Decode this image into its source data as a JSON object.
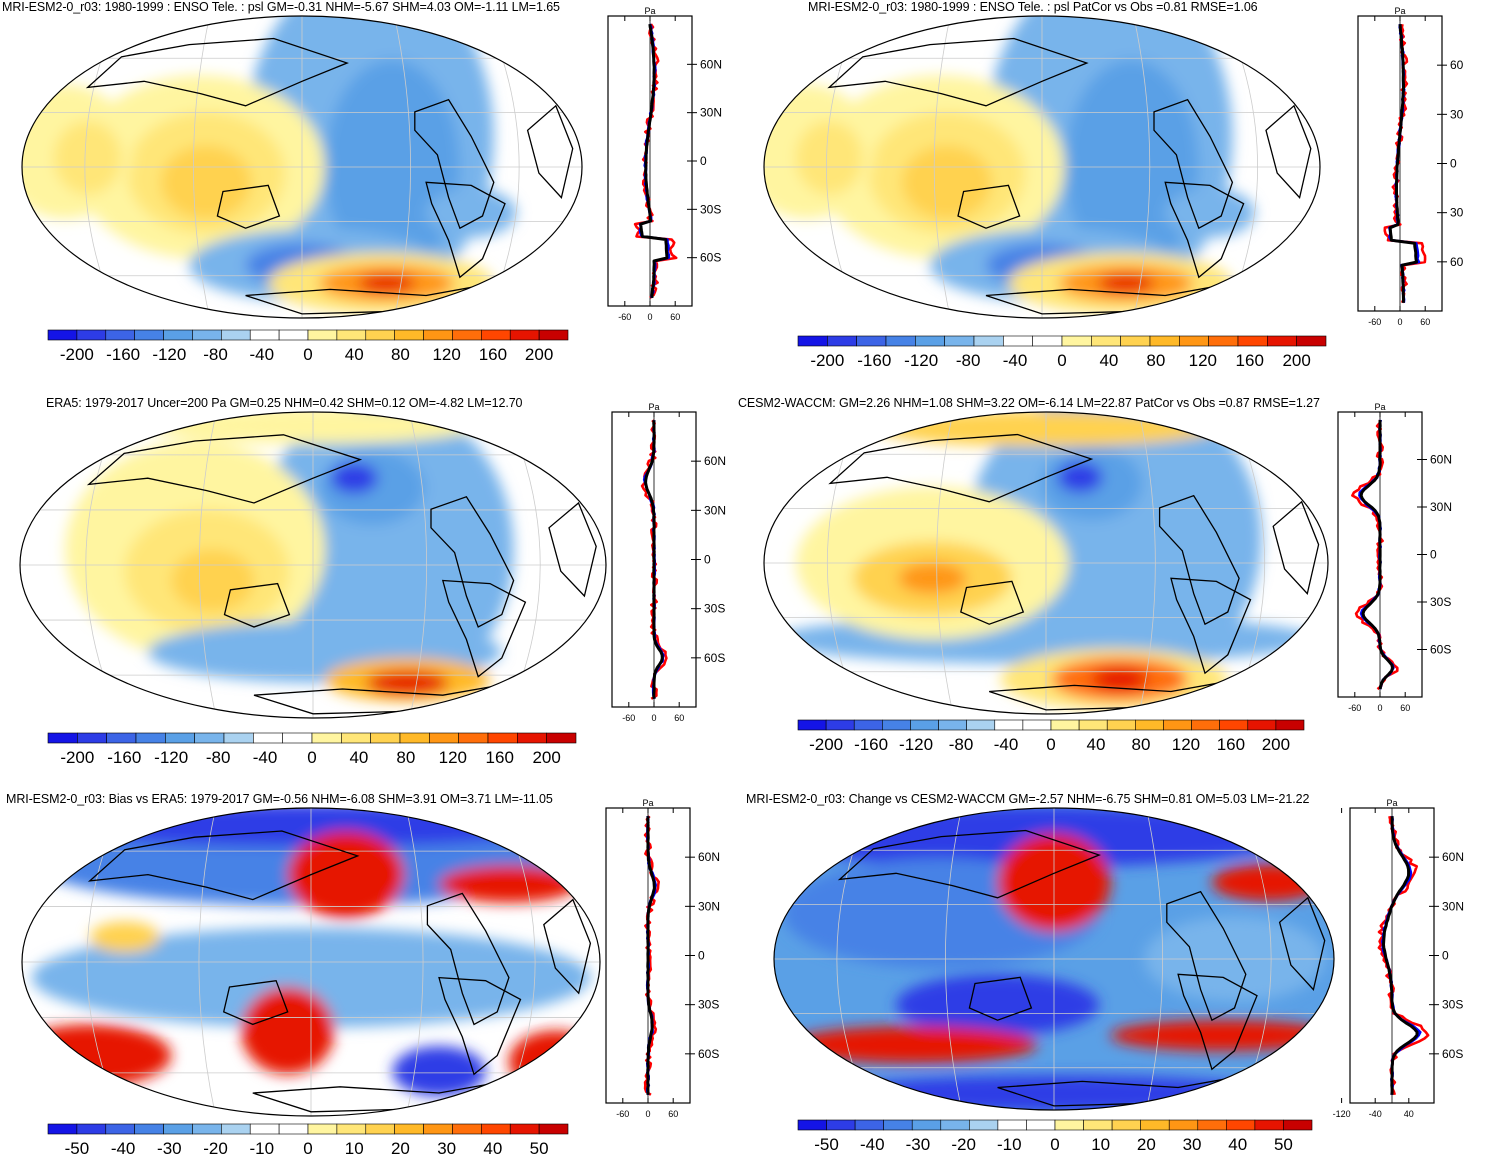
{
  "panels": [
    {
      "id": "mri-enso",
      "title": "MRI-ESM2-0_r03: 1980-1999 : ENSO Tele. : psl GM=-0.31 NHM=-5.67 SHM=4.03 OM=-1.11 LM=1.65",
      "profile": {
        "unit": "Pa",
        "lat_ticks": [
          "60N",
          "30N",
          "0",
          "30S",
          "60S"
        ],
        "x_ticks": [
          "-60",
          "0",
          "60"
        ]
      },
      "colorbar": {
        "labels": [
          "-200",
          "-160",
          "-120",
          "-80",
          "-40",
          "0",
          "40",
          "80",
          "120",
          "160",
          "200"
        ],
        "colors": [
          "#1414e6",
          "#2d3ce6",
          "#3c64e6",
          "#4682e6",
          "#5aa0e6",
          "#78b4eb",
          "#aad2f0",
          "#ffffff",
          "#ffffff",
          "#fff5a0",
          "#ffe678",
          "#ffd250",
          "#ffb928",
          "#ff9614",
          "#ff6e0a",
          "#ff4600",
          "#e61400",
          "#c80000"
        ]
      }
    },
    {
      "id": "mri-patcor",
      "title": "MRI-ESM2-0_r03: 1980-1999 : ENSO Tele. : psl PatCor vs Obs =0.81 RMSE=1.06",
      "profile": {
        "unit": "Pa",
        "lat_ticks": [
          "60",
          "30",
          "0",
          "30",
          "60"
        ],
        "x_ticks": [
          "-60",
          "0",
          "60"
        ]
      },
      "colorbar": {
        "labels": [
          "-200",
          "-160",
          "-120",
          "-80",
          "-40",
          "0",
          "40",
          "80",
          "120",
          "160",
          "200"
        ],
        "colors": [
          "#1414e6",
          "#2d3ce6",
          "#3c64e6",
          "#4682e6",
          "#5aa0e6",
          "#78b4eb",
          "#aad2f0",
          "#ffffff",
          "#ffffff",
          "#fff5a0",
          "#ffe678",
          "#ffd250",
          "#ffb928",
          "#ff9614",
          "#ff6e0a",
          "#ff4600",
          "#e61400",
          "#c80000"
        ]
      }
    },
    {
      "id": "era5",
      "title": "ERA5: 1979-2017 Uncer=200 Pa GM=0.25 NHM=0.42 SHM=0.12 OM=-4.82 LM=12.70",
      "profile": {
        "unit": "Pa",
        "lat_ticks": [
          "60N",
          "30N",
          "0",
          "30S",
          "60S"
        ],
        "x_ticks": [
          "-60",
          "0",
          "60"
        ]
      },
      "colorbar": {
        "labels": [
          "-200",
          "-160",
          "-120",
          "-80",
          "-40",
          "0",
          "40",
          "80",
          "120",
          "160",
          "200"
        ],
        "colors": [
          "#1414e6",
          "#2d3ce6",
          "#3c64e6",
          "#4682e6",
          "#5aa0e6",
          "#78b4eb",
          "#aad2f0",
          "#ffffff",
          "#ffffff",
          "#fff5a0",
          "#ffe678",
          "#ffd250",
          "#ffb928",
          "#ff9614",
          "#ff6e0a",
          "#ff4600",
          "#e61400",
          "#c80000"
        ]
      }
    },
    {
      "id": "cesm2",
      "title": "CESM2-WACCM: GM=2.26 NHM=1.08 SHM=3.22 OM=-6.14 LM=22.87 PatCor vs Obs =0.87 RMSE=1.27",
      "profile": {
        "unit": "Pa",
        "lat_ticks": [
          "60N",
          "30N",
          "0",
          "30S",
          "60S"
        ],
        "x_ticks": [
          "-60",
          "0",
          "60"
        ]
      },
      "colorbar": {
        "labels": [
          "-200",
          "-160",
          "-120",
          "-80",
          "-40",
          "0",
          "40",
          "80",
          "120",
          "160",
          "200"
        ],
        "colors": [
          "#1414e6",
          "#2d3ce6",
          "#3c64e6",
          "#4682e6",
          "#5aa0e6",
          "#78b4eb",
          "#aad2f0",
          "#ffffff",
          "#ffffff",
          "#fff5a0",
          "#ffe678",
          "#ffd250",
          "#ffb928",
          "#ff9614",
          "#ff6e0a",
          "#ff4600",
          "#e61400",
          "#c80000"
        ]
      }
    },
    {
      "id": "bias",
      "title": "MRI-ESM2-0_r03: Bias vs ERA5: 1979-2017 GM=-0.56 NHM=-6.08 SHM=3.91 OM=3.71 LM=-11.05",
      "profile": {
        "unit": "Pa",
        "lat_ticks": [
          "60N",
          "30N",
          "0",
          "30S",
          "60S"
        ],
        "x_ticks": [
          "-60",
          "0",
          "60"
        ]
      },
      "colorbar": {
        "labels": [
          "-50",
          "-40",
          "-30",
          "-20",
          "-10",
          "0",
          "10",
          "20",
          "30",
          "40",
          "50"
        ],
        "colors": [
          "#1414e6",
          "#2d3ce6",
          "#3c64e6",
          "#4682e6",
          "#5aa0e6",
          "#78b4eb",
          "#aad2f0",
          "#ffffff",
          "#ffffff",
          "#fff5a0",
          "#ffe678",
          "#ffd250",
          "#ffb928",
          "#ff9614",
          "#ff6e0a",
          "#ff4600",
          "#e61400",
          "#c80000"
        ]
      }
    },
    {
      "id": "change",
      "title": "MRI-ESM2-0_r03: Change vs CESM2-WACCM GM=-2.57 NHM=-6.75 SHM=0.81 OM=5.03 LM=-21.22",
      "profile": {
        "unit": "Pa",
        "lat_ticks": [
          "60N",
          "30N",
          "0",
          "30S",
          "60S"
        ],
        "x_ticks": [
          "-120",
          "-40",
          "40"
        ]
      },
      "colorbar": {
        "labels": [
          "-50",
          "-40",
          "-30",
          "-20",
          "-10",
          "0",
          "10",
          "20",
          "30",
          "40",
          "50"
        ],
        "colors": [
          "#1414e6",
          "#2d3ce6",
          "#3c64e6",
          "#4682e6",
          "#5aa0e6",
          "#78b4eb",
          "#aad2f0",
          "#ffffff",
          "#ffffff",
          "#fff5a0",
          "#ffe678",
          "#ffd250",
          "#ffb928",
          "#ff9614",
          "#ff6e0a",
          "#ff4600",
          "#e61400",
          "#c80000"
        ]
      }
    }
  ],
  "colors": {
    "model_line": "#0000ff",
    "obs_line": "#ff0000",
    "mean_line": "#000000"
  }
}
